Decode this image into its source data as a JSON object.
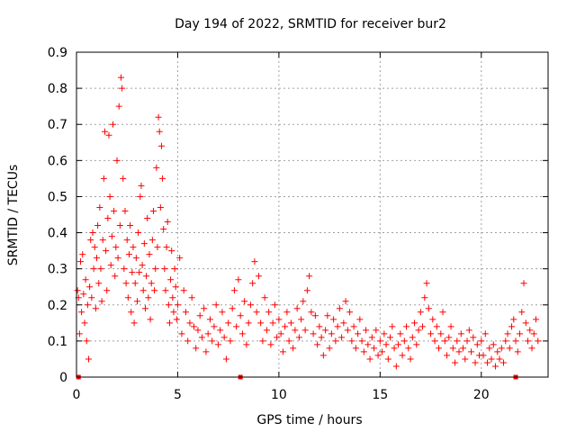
{
  "chart_data": {
    "type": "scatter",
    "title": "Day 194 of 2022, SRMTID for receiver bur2",
    "xlabel": "GPS time / hours",
    "ylabel": "SRMTID / TECUs",
    "xlim": [
      0,
      23.3
    ],
    "ylim": [
      0,
      0.9
    ],
    "xticks": [
      0,
      5,
      10,
      15,
      20
    ],
    "xtick_labels": [
      "0",
      "5",
      "10",
      "15",
      "20"
    ],
    "yticks": [
      0,
      0.1,
      0.2,
      0.3,
      0.4,
      0.5,
      0.6,
      0.7,
      0.8,
      0.9
    ],
    "ytick_labels": [
      "0",
      "0.1",
      "0.2",
      "0.3",
      "0.4",
      "0.5",
      "0.6",
      "0.7",
      "0.8",
      "0.9"
    ],
    "grid": true,
    "marker": "+",
    "marker_color": "#ff0000",
    "series": [
      {
        "name": "SRMTID",
        "points": [
          [
            0.05,
            0.24
          ],
          [
            0.1,
            0.22
          ],
          [
            0.15,
            0.12
          ],
          [
            0.2,
            0.32
          ],
          [
            0.25,
            0.18
          ],
          [
            0.3,
            0.34
          ],
          [
            0.35,
            0.23
          ],
          [
            0.4,
            0.15
          ],
          [
            0.45,
            0.27
          ],
          [
            0.5,
            0.1
          ],
          [
            0.55,
            0.2
          ],
          [
            0.6,
            0.05
          ],
          [
            0.65,
            0.25
          ],
          [
            0.7,
            0.38
          ],
          [
            0.75,
            0.22
          ],
          [
            0.8,
            0.4
          ],
          [
            0.85,
            0.3
          ],
          [
            0.9,
            0.36
          ],
          [
            0.95,
            0.19
          ],
          [
            1.0,
            0.33
          ],
          [
            1.05,
            0.42
          ],
          [
            1.1,
            0.26
          ],
          [
            1.15,
            0.47
          ],
          [
            1.2,
            0.3
          ],
          [
            1.25,
            0.21
          ],
          [
            1.3,
            0.38
          ],
          [
            1.35,
            0.55
          ],
          [
            1.4,
            0.68
          ],
          [
            1.45,
            0.35
          ],
          [
            1.5,
            0.24
          ],
          [
            1.55,
            0.44
          ],
          [
            1.6,
            0.67
          ],
          [
            1.65,
            0.5
          ],
          [
            1.7,
            0.31
          ],
          [
            1.75,
            0.39
          ],
          [
            1.8,
            0.7
          ],
          [
            1.85,
            0.46
          ],
          [
            1.9,
            0.28
          ],
          [
            1.95,
            0.36
          ],
          [
            2.0,
            0.6
          ],
          [
            2.05,
            0.33
          ],
          [
            2.1,
            0.75
          ],
          [
            2.15,
            0.42
          ],
          [
            2.2,
            0.83
          ],
          [
            2.25,
            0.8
          ],
          [
            2.3,
            0.55
          ],
          [
            2.35,
            0.3
          ],
          [
            2.4,
            0.46
          ],
          [
            2.45,
            0.26
          ],
          [
            2.5,
            0.38
          ],
          [
            2.55,
            0.22
          ],
          [
            2.6,
            0.34
          ],
          [
            2.65,
            0.42
          ],
          [
            2.7,
            0.18
          ],
          [
            2.75,
            0.29
          ],
          [
            2.8,
            0.36
          ],
          [
            2.85,
            0.15
          ],
          [
            2.9,
            0.26
          ],
          [
            2.95,
            0.33
          ],
          [
            3.0,
            0.21
          ],
          [
            3.05,
            0.4
          ],
          [
            3.1,
            0.29
          ],
          [
            3.15,
            0.5
          ],
          [
            3.2,
            0.53
          ],
          [
            3.25,
            0.31
          ],
          [
            3.3,
            0.24
          ],
          [
            3.35,
            0.37
          ],
          [
            3.4,
            0.19
          ],
          [
            3.45,
            0.28
          ],
          [
            3.5,
            0.44
          ],
          [
            3.55,
            0.22
          ],
          [
            3.6,
            0.34
          ],
          [
            3.65,
            0.16
          ],
          [
            3.7,
            0.26
          ],
          [
            3.75,
            0.38
          ],
          [
            3.8,
            0.46
          ],
          [
            3.85,
            0.24
          ],
          [
            3.9,
            0.3
          ],
          [
            3.95,
            0.58
          ],
          [
            4.0,
            0.36
          ],
          [
            4.05,
            0.72
          ],
          [
            4.1,
            0.68
          ],
          [
            4.15,
            0.47
          ],
          [
            4.2,
            0.64
          ],
          [
            4.25,
            0.55
          ],
          [
            4.3,
            0.41
          ],
          [
            4.35,
            0.3
          ],
          [
            4.4,
            0.24
          ],
          [
            4.45,
            0.36
          ],
          [
            4.5,
            0.43
          ],
          [
            4.55,
            0.2
          ],
          [
            4.6,
            0.15
          ],
          [
            4.65,
            0.27
          ],
          [
            4.7,
            0.35
          ],
          [
            4.75,
            0.22
          ],
          [
            4.8,
            0.18
          ],
          [
            4.85,
            0.3
          ],
          [
            4.9,
            0.25
          ],
          [
            4.95,
            0.16
          ],
          [
            5.0,
            0.2
          ],
          [
            5.1,
            0.33
          ],
          [
            5.2,
            0.12
          ],
          [
            5.3,
            0.24
          ],
          [
            5.4,
            0.18
          ],
          [
            5.5,
            0.1
          ],
          [
            5.6,
            0.15
          ],
          [
            5.7,
            0.22
          ],
          [
            5.8,
            0.14
          ],
          [
            5.9,
            0.08
          ],
          [
            6.0,
            0.13
          ],
          [
            6.1,
            0.17
          ],
          [
            6.2,
            0.11
          ],
          [
            6.3,
            0.19
          ],
          [
            6.4,
            0.07
          ],
          [
            6.5,
            0.12
          ],
          [
            6.6,
            0.16
          ],
          [
            6.7,
            0.1
          ],
          [
            6.8,
            0.14
          ],
          [
            6.9,
            0.2
          ],
          [
            7.0,
            0.09
          ],
          [
            7.1,
            0.13
          ],
          [
            7.2,
            0.18
          ],
          [
            7.3,
            0.11
          ],
          [
            7.4,
            0.05
          ],
          [
            7.5,
            0.15
          ],
          [
            7.6,
            0.1
          ],
          [
            7.7,
            0.19
          ],
          [
            7.8,
            0.24
          ],
          [
            7.9,
            0.14
          ],
          [
            8.0,
            0.27
          ],
          [
            8.1,
            0.17
          ],
          [
            8.2,
            0.12
          ],
          [
            8.3,
            0.21
          ],
          [
            8.4,
            0.09
          ],
          [
            8.5,
            0.15
          ],
          [
            8.6,
            0.2
          ],
          [
            8.7,
            0.26
          ],
          [
            8.8,
            0.32
          ],
          [
            8.9,
            0.18
          ],
          [
            9.0,
            0.28
          ],
          [
            9.1,
            0.15
          ],
          [
            9.2,
            0.1
          ],
          [
            9.3,
            0.22
          ],
          [
            9.4,
            0.13
          ],
          [
            9.5,
            0.18
          ],
          [
            9.6,
            0.09
          ],
          [
            9.7,
            0.15
          ],
          [
            9.8,
            0.2
          ],
          [
            9.9,
            0.11
          ],
          [
            10.0,
            0.16
          ],
          [
            10.1,
            0.12
          ],
          [
            10.2,
            0.07
          ],
          [
            10.3,
            0.14
          ],
          [
            10.4,
            0.18
          ],
          [
            10.5,
            0.1
          ],
          [
            10.6,
            0.15
          ],
          [
            10.7,
            0.08
          ],
          [
            10.8,
            0.13
          ],
          [
            10.9,
            0.19
          ],
          [
            11.0,
            0.11
          ],
          [
            11.1,
            0.16
          ],
          [
            11.2,
            0.21
          ],
          [
            11.3,
            0.13
          ],
          [
            11.4,
            0.24
          ],
          [
            11.5,
            0.28
          ],
          [
            11.6,
            0.18
          ],
          [
            11.7,
            0.12
          ],
          [
            11.8,
            0.17
          ],
          [
            11.9,
            0.09
          ],
          [
            12.0,
            0.14
          ],
          [
            12.1,
            0.11
          ],
          [
            12.2,
            0.06
          ],
          [
            12.3,
            0.13
          ],
          [
            12.4,
            0.17
          ],
          [
            12.5,
            0.08
          ],
          [
            12.6,
            0.12
          ],
          [
            12.7,
            0.16
          ],
          [
            12.8,
            0.1
          ],
          [
            12.9,
            0.14
          ],
          [
            13.0,
            0.19
          ],
          [
            13.1,
            0.11
          ],
          [
            13.2,
            0.15
          ],
          [
            13.3,
            0.21
          ],
          [
            13.4,
            0.13
          ],
          [
            13.5,
            0.18
          ],
          [
            13.6,
            0.1
          ],
          [
            13.7,
            0.14
          ],
          [
            13.8,
            0.08
          ],
          [
            13.9,
            0.12
          ],
          [
            14.0,
            0.16
          ],
          [
            14.1,
            0.1
          ],
          [
            14.2,
            0.07
          ],
          [
            14.3,
            0.13
          ],
          [
            14.4,
            0.09
          ],
          [
            14.5,
            0.05
          ],
          [
            14.6,
            0.11
          ],
          [
            14.7,
            0.08
          ],
          [
            14.8,
            0.13
          ],
          [
            14.9,
            0.06
          ],
          [
            15.0,
            0.1
          ],
          [
            15.1,
            0.07
          ],
          [
            15.2,
            0.12
          ],
          [
            15.3,
            0.09
          ],
          [
            15.4,
            0.05
          ],
          [
            15.5,
            0.11
          ],
          [
            15.6,
            0.14
          ],
          [
            15.7,
            0.08
          ],
          [
            15.8,
            0.03
          ],
          [
            15.9,
            0.09
          ],
          [
            16.0,
            0.12
          ],
          [
            16.1,
            0.06
          ],
          [
            16.2,
            0.1
          ],
          [
            16.3,
            0.14
          ],
          [
            16.4,
            0.08
          ],
          [
            16.5,
            0.05
          ],
          [
            16.6,
            0.11
          ],
          [
            16.7,
            0.15
          ],
          [
            16.8,
            0.09
          ],
          [
            16.9,
            0.13
          ],
          [
            17.0,
            0.18
          ],
          [
            17.1,
            0.14
          ],
          [
            17.2,
            0.22
          ],
          [
            17.3,
            0.26
          ],
          [
            17.4,
            0.19
          ],
          [
            17.5,
            0.12
          ],
          [
            17.6,
            0.16
          ],
          [
            17.7,
            0.1
          ],
          [
            17.8,
            0.14
          ],
          [
            17.9,
            0.08
          ],
          [
            18.0,
            0.12
          ],
          [
            18.1,
            0.18
          ],
          [
            18.2,
            0.1
          ],
          [
            18.3,
            0.06
          ],
          [
            18.4,
            0.11
          ],
          [
            18.5,
            0.14
          ],
          [
            18.6,
            0.08
          ],
          [
            18.7,
            0.04
          ],
          [
            18.8,
            0.1
          ],
          [
            18.9,
            0.07
          ],
          [
            19.0,
            0.12
          ],
          [
            19.1,
            0.08
          ],
          [
            19.2,
            0.05
          ],
          [
            19.3,
            0.1
          ],
          [
            19.4,
            0.13
          ],
          [
            19.5,
            0.07
          ],
          [
            19.6,
            0.11
          ],
          [
            19.7,
            0.04
          ],
          [
            19.8,
            0.09
          ],
          [
            19.9,
            0.06
          ],
          [
            20.0,
            0.1
          ],
          [
            20.1,
            0.06
          ],
          [
            20.2,
            0.12
          ],
          [
            20.3,
            0.04
          ],
          [
            20.4,
            0.08
          ],
          [
            20.5,
            0.05
          ],
          [
            20.6,
            0.09
          ],
          [
            20.7,
            0.03
          ],
          [
            20.8,
            0.07
          ],
          [
            20.9,
            0.05
          ],
          [
            21.0,
            0.08
          ],
          [
            21.1,
            0.04
          ],
          [
            21.2,
            0.1
          ],
          [
            21.3,
            0.12
          ],
          [
            21.4,
            0.08
          ],
          [
            21.5,
            0.14
          ],
          [
            21.6,
            0.16
          ],
          [
            21.7,
            0.1
          ],
          [
            21.8,
            0.07
          ],
          [
            21.9,
            0.12
          ],
          [
            22.0,
            0.18
          ],
          [
            22.1,
            0.26
          ],
          [
            22.2,
            0.15
          ],
          [
            22.3,
            0.1
          ],
          [
            22.4,
            0.13
          ],
          [
            22.5,
            0.08
          ],
          [
            22.6,
            0.12
          ],
          [
            22.7,
            0.16
          ],
          [
            22.8,
            0.1
          ]
        ]
      }
    ],
    "axis_markers": [
      {
        "x": 0.1,
        "y": 0
      },
      {
        "x": 8.1,
        "y": 0
      },
      {
        "x": 21.7,
        "y": 0
      }
    ]
  }
}
